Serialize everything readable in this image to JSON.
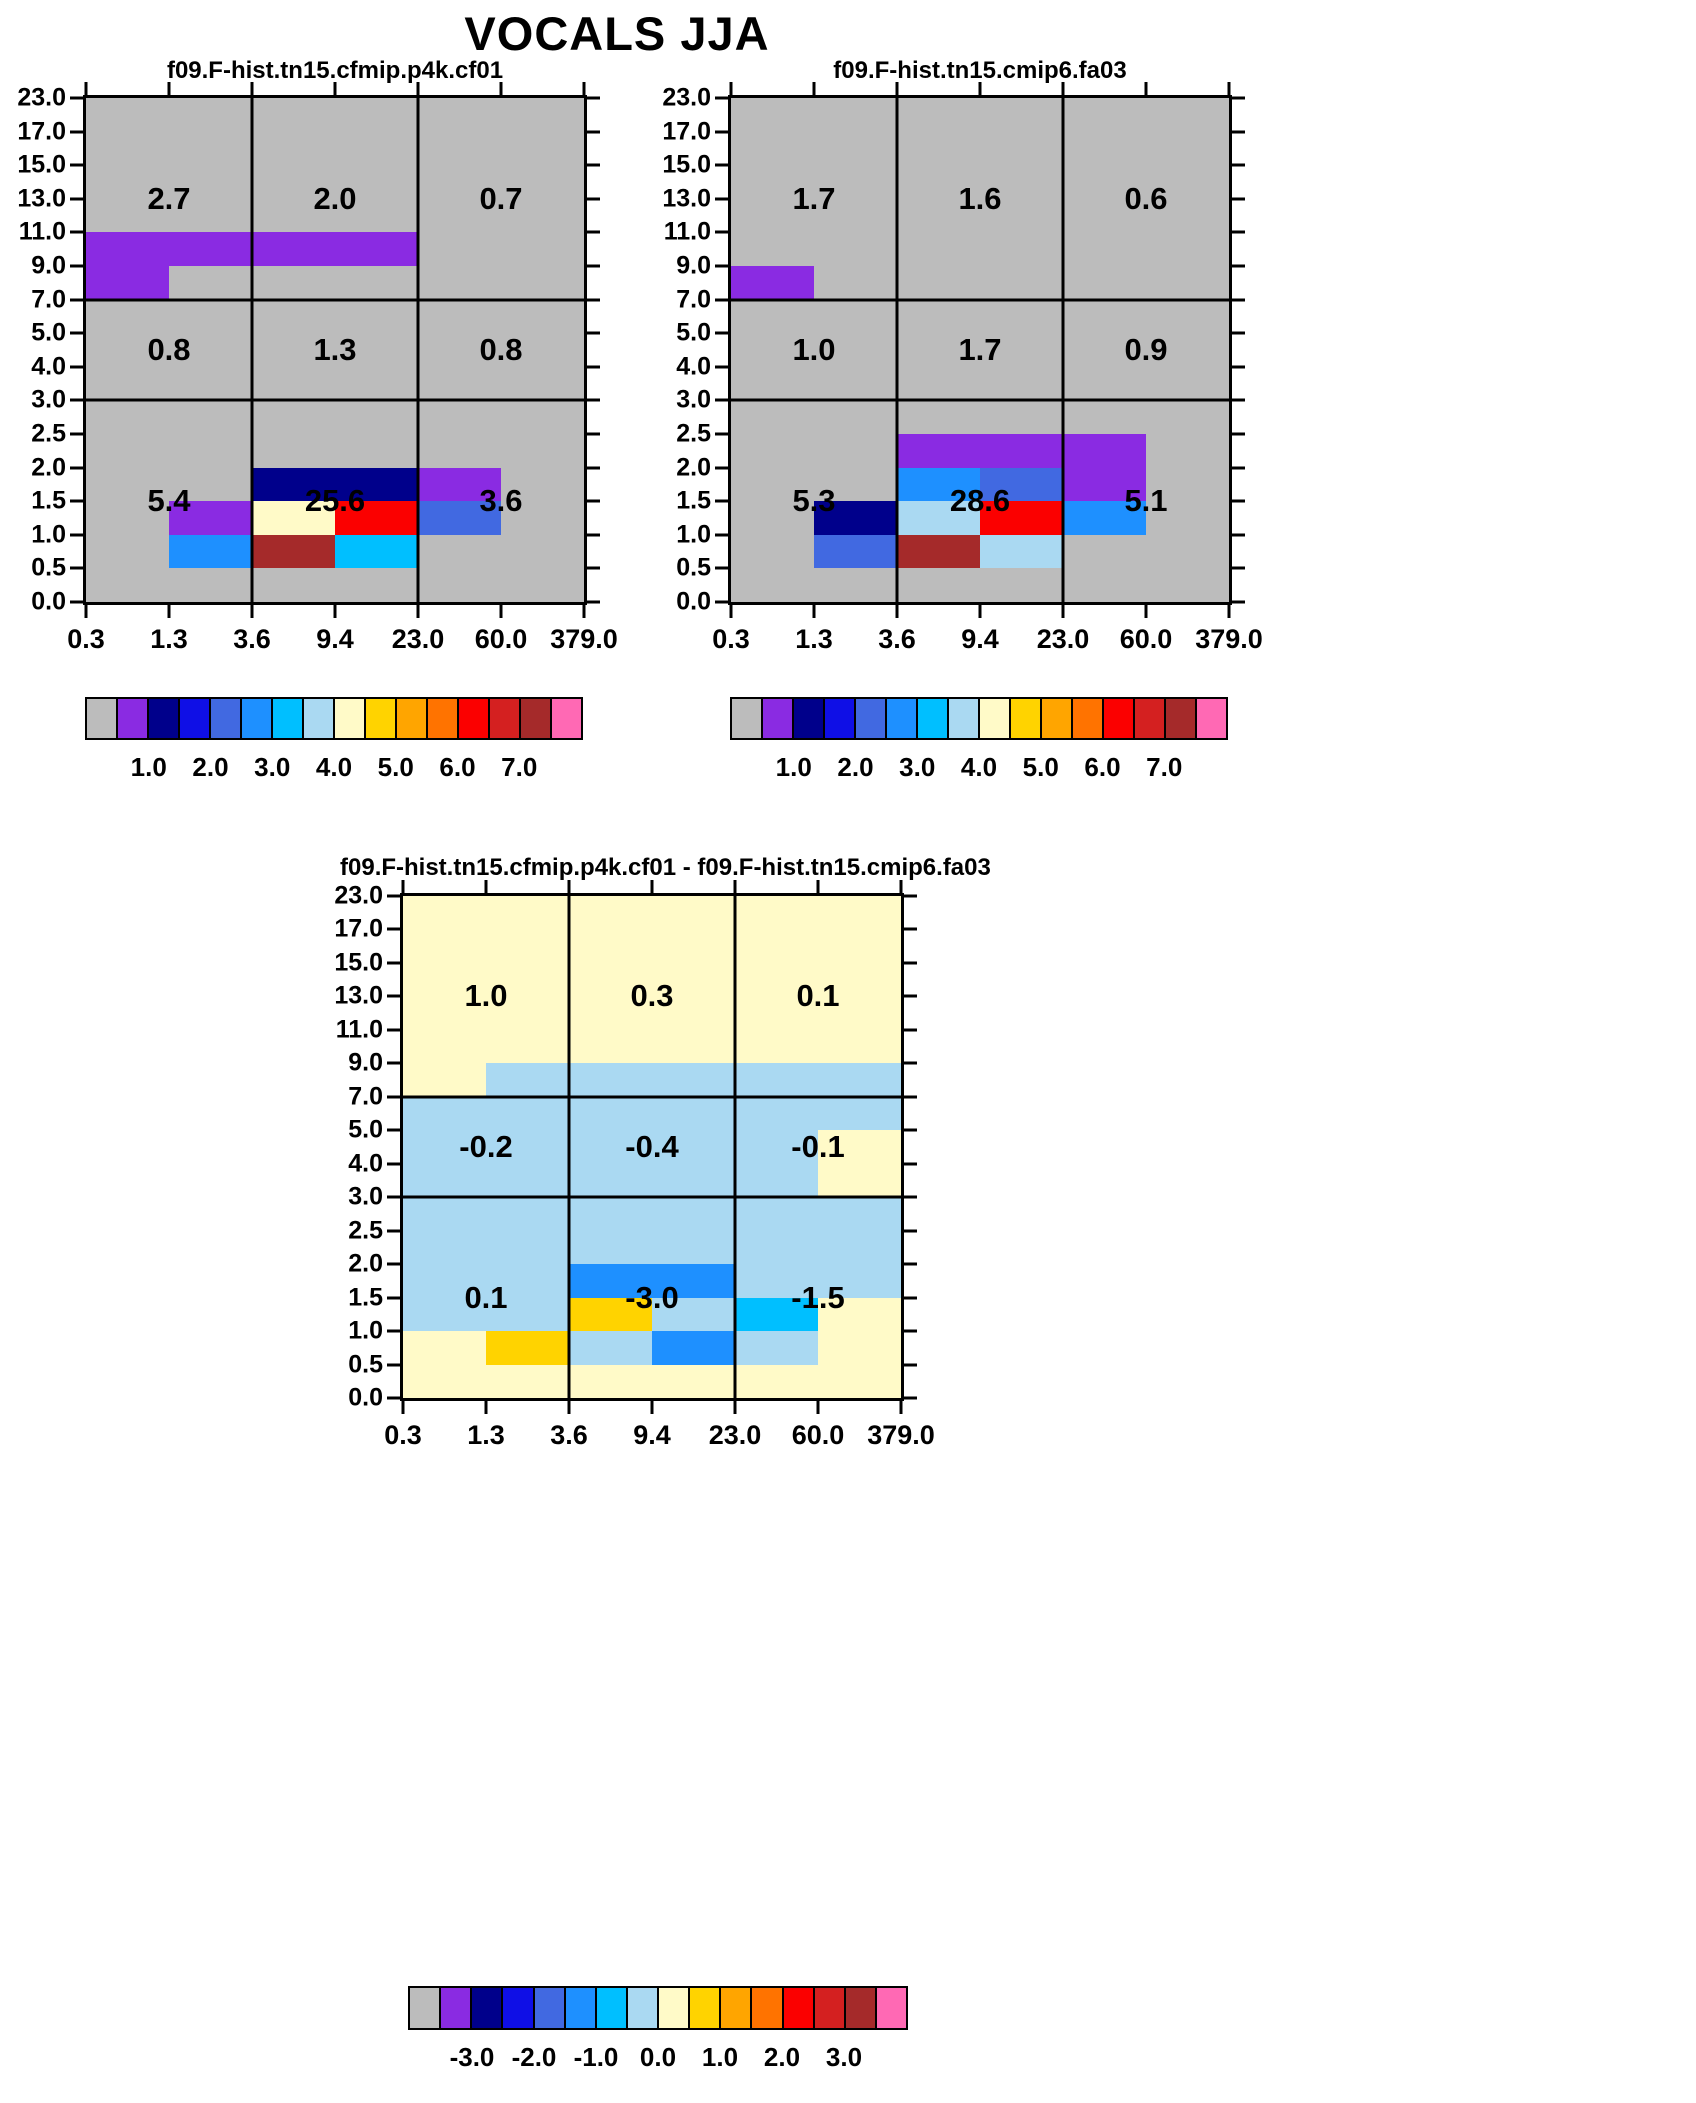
{
  "title": "VOCALS JJA",
  "palette": {
    "gray": "#bcbcbc",
    "purple": "#8a2be2",
    "navy": "#00008b",
    "blue": "#0f0fe6",
    "royal": "#4169e1",
    "dodger": "#1e90ff",
    "sky": "#00bfff",
    "pale": "#aad9f2",
    "cream": "#fffac8",
    "gold": "#ffd300",
    "orange": "#ffa500",
    "darkorange": "#ff7300",
    "red": "#fb0000",
    "crimson": "#d42020",
    "brick": "#a52a2a",
    "pink": "#ff69b4"
  },
  "colorbar_colors": [
    "gray",
    "purple",
    "navy",
    "blue",
    "royal",
    "dodger",
    "sky",
    "pale",
    "cream",
    "gold",
    "orange",
    "darkorange",
    "red",
    "crimson",
    "brick",
    "pink"
  ],
  "chart_data": [
    {
      "type": "heatmap",
      "title": "f09.F-hist.tn15.cfmip.p4k.cf01",
      "background": "gray",
      "x_ticks": [
        "0.3",
        "1.3",
        "3.6",
        "9.4",
        "23.0",
        "60.0",
        "379.0"
      ],
      "y_ticks": [
        "23.0",
        "17.0",
        "15.0",
        "13.0",
        "11.0",
        "9.0",
        "7.0",
        "5.0",
        "4.0",
        "3.0",
        "2.5",
        "2.0",
        "1.5",
        "1.0",
        "0.5",
        "0.0"
      ],
      "grid": {
        "x_indices": [
          2,
          4
        ],
        "y_indices": [
          6,
          9
        ]
      },
      "overlay_values": [
        [
          "2.7",
          "2.0",
          "0.7"
        ],
        [
          "0.8",
          "1.3",
          "0.8"
        ],
        [
          "5.4",
          "25.6",
          "3.6"
        ]
      ],
      "cells": [
        {
          "col": 0,
          "row": 4,
          "w": 4,
          "h": 1,
          "color": "purple"
        },
        {
          "col": 0,
          "row": 5,
          "w": 1,
          "h": 1,
          "color": "purple"
        },
        {
          "col": 2,
          "row": 11,
          "w": 2,
          "h": 1,
          "color": "navy"
        },
        {
          "col": 4,
          "row": 11,
          "w": 1,
          "h": 1,
          "color": "purple"
        },
        {
          "col": 1,
          "row": 12,
          "w": 1,
          "h": 1,
          "color": "purple"
        },
        {
          "col": 2,
          "row": 12,
          "w": 1,
          "h": 1,
          "color": "cream"
        },
        {
          "col": 3,
          "row": 12,
          "w": 1,
          "h": 1,
          "color": "red"
        },
        {
          "col": 4,
          "row": 12,
          "w": 1,
          "h": 1,
          "color": "royal"
        },
        {
          "col": 1,
          "row": 13,
          "w": 1,
          "h": 1,
          "color": "dodger"
        },
        {
          "col": 2,
          "row": 13,
          "w": 1,
          "h": 1,
          "color": "brick"
        },
        {
          "col": 3,
          "row": 13,
          "w": 1,
          "h": 1,
          "color": "sky"
        }
      ],
      "colorbar_labels": [
        "1.0",
        "2.0",
        "3.0",
        "4.0",
        "5.0",
        "6.0",
        "7.0"
      ]
    },
    {
      "type": "heatmap",
      "title": "f09.F-hist.tn15.cmip6.fa03",
      "background": "gray",
      "x_ticks": [
        "0.3",
        "1.3",
        "3.6",
        "9.4",
        "23.0",
        "60.0",
        "379.0"
      ],
      "y_ticks": [
        "23.0",
        "17.0",
        "15.0",
        "13.0",
        "11.0",
        "9.0",
        "7.0",
        "5.0",
        "4.0",
        "3.0",
        "2.5",
        "2.0",
        "1.5",
        "1.0",
        "0.5",
        "0.0"
      ],
      "grid": {
        "x_indices": [
          2,
          4
        ],
        "y_indices": [
          6,
          9
        ]
      },
      "overlay_values": [
        [
          "1.7",
          "1.6",
          "0.6"
        ],
        [
          "1.0",
          "1.7",
          "0.9"
        ],
        [
          "5.3",
          "28.6",
          "5.1"
        ]
      ],
      "cells": [
        {
          "col": 0,
          "row": 5,
          "w": 1,
          "h": 1,
          "color": "purple"
        },
        {
          "col": 2,
          "row": 10,
          "w": 2,
          "h": 1,
          "color": "purple"
        },
        {
          "col": 4,
          "row": 10,
          "w": 1,
          "h": 2,
          "color": "purple"
        },
        {
          "col": 2,
          "row": 11,
          "w": 1,
          "h": 1,
          "color": "dodger"
        },
        {
          "col": 3,
          "row": 11,
          "w": 1,
          "h": 1,
          "color": "royal"
        },
        {
          "col": 1,
          "row": 12,
          "w": 1,
          "h": 1,
          "color": "navy"
        },
        {
          "col": 2,
          "row": 12,
          "w": 1,
          "h": 1,
          "color": "pale"
        },
        {
          "col": 3,
          "row": 12,
          "w": 1,
          "h": 1,
          "color": "red"
        },
        {
          "col": 4,
          "row": 12,
          "w": 1,
          "h": 1,
          "color": "dodger"
        },
        {
          "col": 1,
          "row": 13,
          "w": 1,
          "h": 1,
          "color": "royal"
        },
        {
          "col": 2,
          "row": 13,
          "w": 1,
          "h": 1,
          "color": "brick"
        },
        {
          "col": 3,
          "row": 13,
          "w": 1,
          "h": 1,
          "color": "pale"
        }
      ],
      "colorbar_labels": [
        "1.0",
        "2.0",
        "3.0",
        "4.0",
        "5.0",
        "6.0",
        "7.0"
      ]
    },
    {
      "type": "heatmap",
      "title": "f09.F-hist.tn15.cfmip.p4k.cf01 - f09.F-hist.tn15.cmip6.fa03",
      "background": "cream",
      "x_ticks": [
        "0.3",
        "1.3",
        "3.6",
        "9.4",
        "23.0",
        "60.0",
        "379.0"
      ],
      "y_ticks": [
        "23.0",
        "17.0",
        "15.0",
        "13.0",
        "11.0",
        "9.0",
        "7.0",
        "5.0",
        "4.0",
        "3.0",
        "2.5",
        "2.0",
        "1.5",
        "1.0",
        "0.5",
        "0.0"
      ],
      "grid": {
        "x_indices": [
          2,
          4
        ],
        "y_indices": [
          6,
          9
        ]
      },
      "overlay_values": [
        [
          "1.0",
          "0.3",
          "0.1"
        ],
        [
          "-0.2",
          "-0.4",
          "-0.1"
        ],
        [
          "0.1",
          "-3.0",
          "-1.5"
        ]
      ],
      "cells": [
        {
          "col": 1,
          "row": 5,
          "w": 5,
          "h": 1,
          "color": "pale"
        },
        {
          "col": 0,
          "row": 6,
          "w": 6,
          "h": 1,
          "color": "pale"
        },
        {
          "col": 0,
          "row": 7,
          "w": 5,
          "h": 2,
          "color": "pale"
        },
        {
          "col": 0,
          "row": 9,
          "w": 6,
          "h": 2,
          "color": "pale"
        },
        {
          "col": 0,
          "row": 11,
          "w": 2,
          "h": 1,
          "color": "pale"
        },
        {
          "col": 2,
          "row": 11,
          "w": 2,
          "h": 1,
          "color": "dodger"
        },
        {
          "col": 4,
          "row": 11,
          "w": 2,
          "h": 1,
          "color": "pale"
        },
        {
          "col": 0,
          "row": 12,
          "w": 2,
          "h": 1,
          "color": "pale"
        },
        {
          "col": 2,
          "row": 12,
          "w": 1,
          "h": 1,
          "color": "gold"
        },
        {
          "col": 3,
          "row": 12,
          "w": 1,
          "h": 1,
          "color": "pale"
        },
        {
          "col": 4,
          "row": 12,
          "w": 1,
          "h": 1,
          "color": "sky"
        },
        {
          "col": 1,
          "row": 13,
          "w": 1,
          "h": 1,
          "color": "gold"
        },
        {
          "col": 2,
          "row": 13,
          "w": 1,
          "h": 1,
          "color": "pale"
        },
        {
          "col": 3,
          "row": 13,
          "w": 1,
          "h": 1,
          "color": "dodger"
        },
        {
          "col": 4,
          "row": 13,
          "w": 1,
          "h": 1,
          "color": "pale"
        }
      ],
      "colorbar_labels": [
        "-3.0",
        "-2.0",
        "-1.0",
        "0.0",
        "1.0",
        "2.0",
        "3.0"
      ]
    }
  ]
}
